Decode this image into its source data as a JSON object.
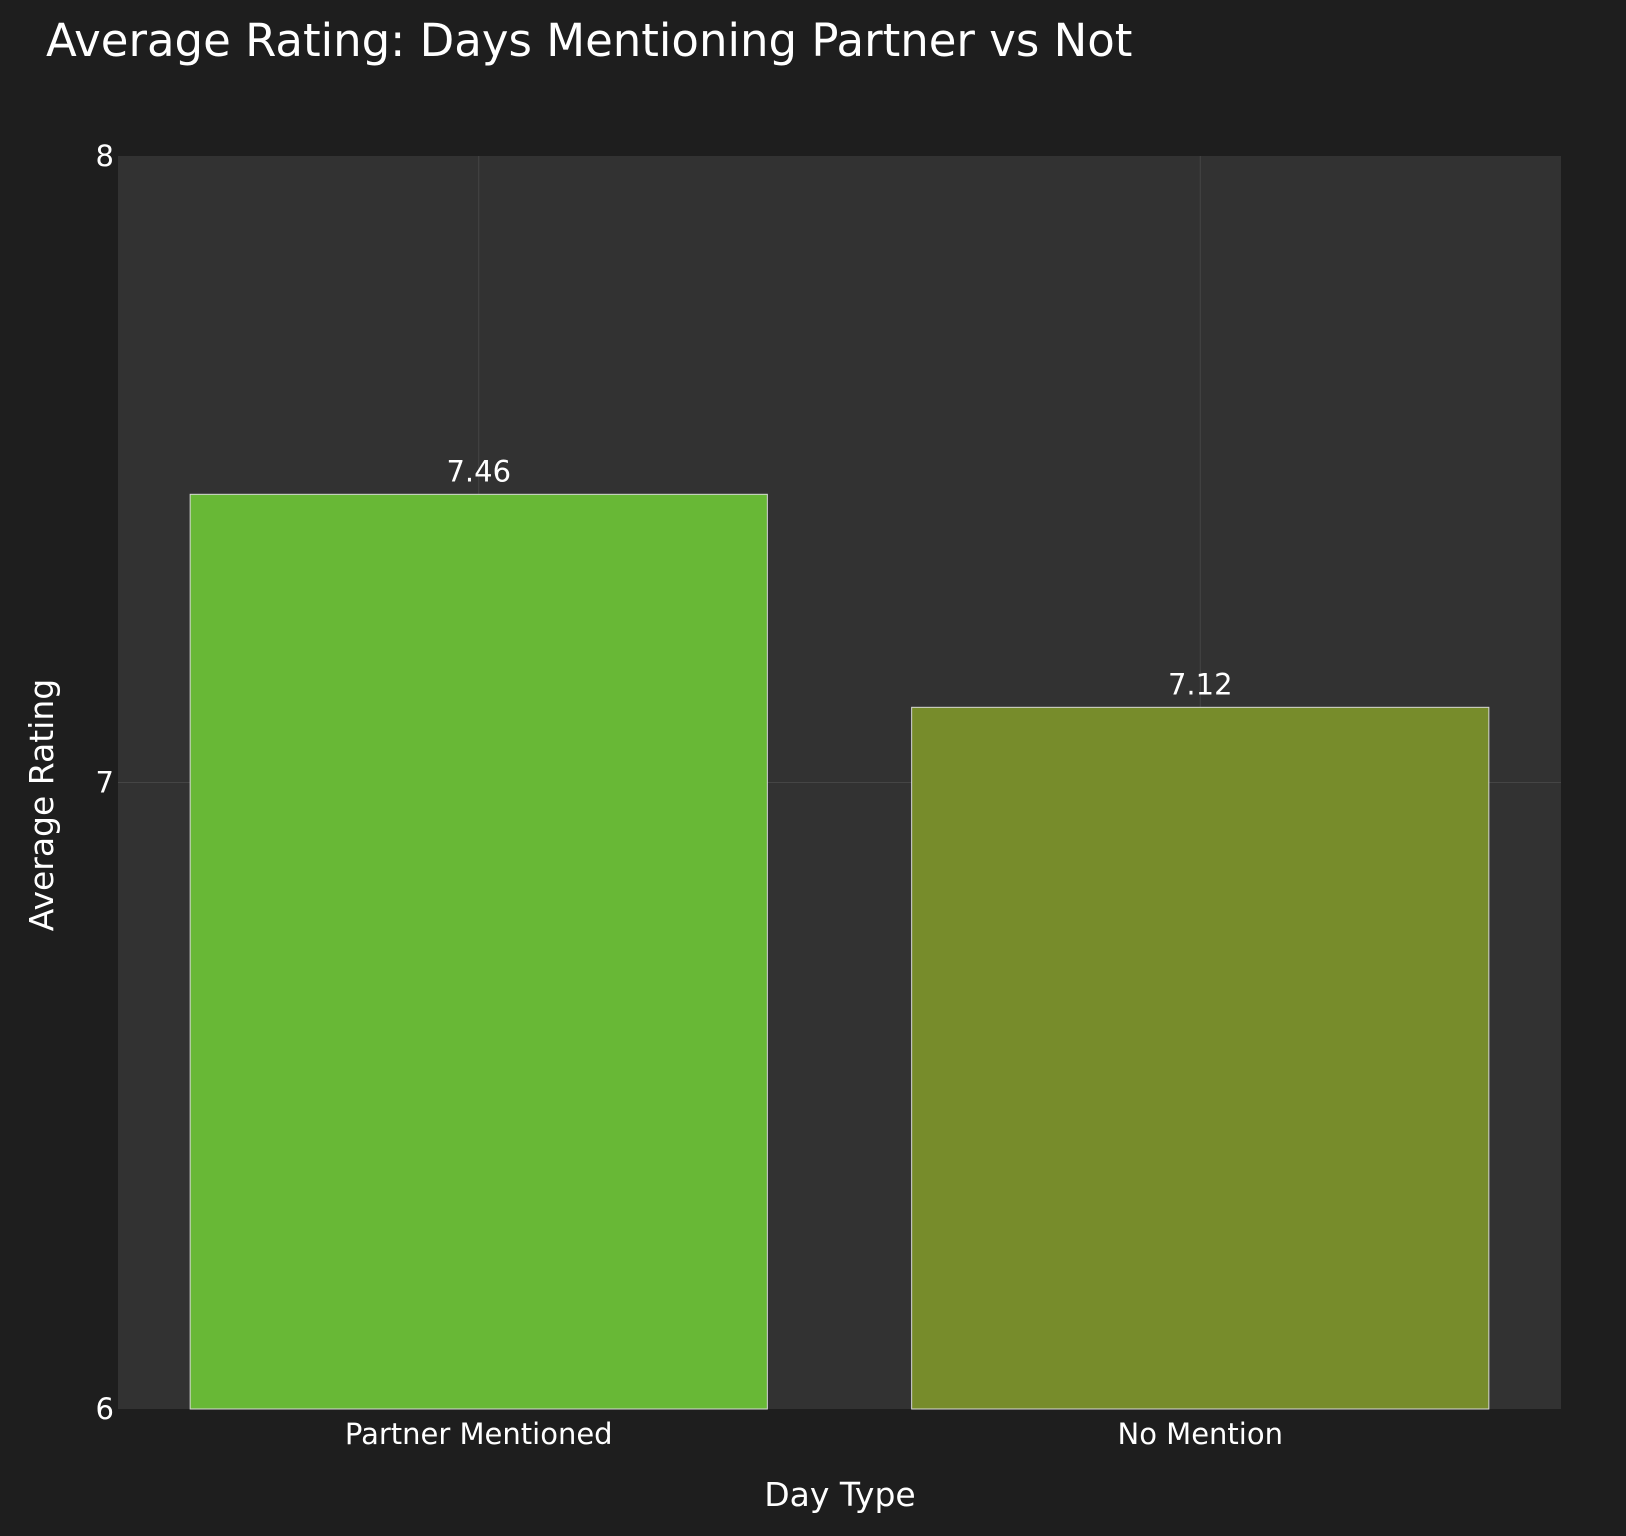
{
  "chart_data": {
    "type": "bar",
    "title": "Average Rating: Days Mentioning Partner vs Not",
    "xlabel": "Day Type",
    "ylabel": "Average Rating",
    "categories": [
      "Partner Mentioned",
      "No Mention"
    ],
    "values": [
      7.46,
      7.12
    ],
    "value_labels": [
      "7.46",
      "7.12"
    ],
    "ylim": [
      6,
      8
    ],
    "yticks": [
      6,
      7,
      8
    ],
    "ytick_labels": [
      "6",
      "7",
      "8"
    ],
    "grid": true,
    "legend": "none",
    "colors": {
      "page_background": "#1e1e1e",
      "plot_background": "#323232",
      "gridline": "#454545",
      "bar_outline": "#d8d8d8",
      "bars": [
        "#68b836",
        "#778c2b"
      ]
    }
  }
}
